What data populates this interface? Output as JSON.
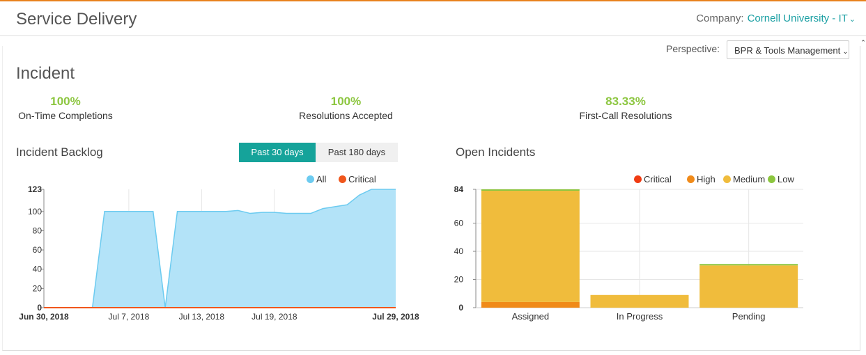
{
  "header": {
    "title": "Service Delivery",
    "company_label": "Company:",
    "company_value": "Cornell University - IT",
    "accent": "#e8821e"
  },
  "perspective": {
    "label": "Perspective:",
    "value": "BPR & Tools Management"
  },
  "section": {
    "title": "Incident"
  },
  "kpis": [
    {
      "value": "100%",
      "label": "On-Time Completions"
    },
    {
      "value": "100%",
      "label": "Resolutions Accepted"
    },
    {
      "value": "83.33%",
      "label": "First-Call Resolutions"
    }
  ],
  "backlog": {
    "title": "Incident Backlog",
    "tabs": [
      {
        "label": "Past 30 days",
        "active": true
      },
      {
        "label": "Past 180 days",
        "active": false
      }
    ],
    "legend": [
      {
        "name": "All",
        "color": "#6ccbf0"
      },
      {
        "name": "Critical",
        "color": "#f0561c"
      }
    ]
  },
  "open": {
    "title": "Open Incidents",
    "legend": [
      {
        "name": "Critical",
        "color": "#f03b12"
      },
      {
        "name": "High",
        "color": "#f08a19"
      },
      {
        "name": "Medium",
        "color": "#f0bc3c"
      },
      {
        "name": "Low",
        "color": "#8cc63f"
      }
    ]
  },
  "chart_data": [
    {
      "type": "area",
      "title": "Incident Backlog",
      "x": [
        "2018-06-30",
        "2018-07-01",
        "2018-07-02",
        "2018-07-03",
        "2018-07-04",
        "2018-07-05",
        "2018-07-06",
        "2018-07-07",
        "2018-07-08",
        "2018-07-09",
        "2018-07-10",
        "2018-07-11",
        "2018-07-12",
        "2018-07-13",
        "2018-07-14",
        "2018-07-15",
        "2018-07-16",
        "2018-07-17",
        "2018-07-18",
        "2018-07-19",
        "2018-07-20",
        "2018-07-21",
        "2018-07-22",
        "2018-07-23",
        "2018-07-24",
        "2018-07-25",
        "2018-07-26",
        "2018-07-27",
        "2018-07-28",
        "2018-07-29"
      ],
      "x_tick_labels": [
        "Jun 30, 2018",
        "Jul 7, 2018",
        "Jul 13, 2018",
        "Jul 19, 2018",
        "Jul 29, 2018"
      ],
      "x_tick_dates": [
        "2018-06-30",
        "2018-07-07",
        "2018-07-13",
        "2018-07-19",
        "2018-07-29"
      ],
      "series": [
        {
          "name": "All",
          "values": [
            0,
            0,
            0,
            0,
            0,
            100,
            100,
            100,
            100,
            100,
            0,
            100,
            100,
            100,
            100,
            100,
            101,
            98,
            99,
            99,
            98,
            98,
            98,
            103,
            105,
            107,
            117,
            123,
            123,
            123
          ]
        },
        {
          "name": "Critical",
          "values": [
            0,
            0,
            0,
            0,
            0,
            0,
            0,
            0,
            0,
            0,
            0,
            0,
            0,
            0,
            0,
            0,
            0,
            0,
            0,
            0,
            0,
            0,
            0,
            0,
            0,
            0,
            0,
            0,
            0,
            0
          ]
        }
      ],
      "y_ticks": [
        "0",
        "20",
        "40",
        "60",
        "80",
        "100",
        "123"
      ],
      "ylim": [
        0,
        123
      ],
      "grid": "vertical",
      "legend_position": "top-right"
    },
    {
      "type": "bar",
      "stacked": true,
      "title": "Open Incidents",
      "categories": [
        "Assigned",
        "In Progress",
        "Pending"
      ],
      "series": [
        {
          "name": "Critical",
          "values": [
            0,
            0,
            0
          ]
        },
        {
          "name": "High",
          "values": [
            4,
            0,
            0
          ]
        },
        {
          "name": "Medium",
          "values": [
            79,
            9,
            30
          ]
        },
        {
          "name": "Low",
          "values": [
            1,
            0,
            1
          ]
        }
      ],
      "y_ticks": [
        "0",
        "20",
        "40",
        "60",
        "84"
      ],
      "ylim": [
        0,
        84
      ],
      "grid": "both",
      "legend_position": "top-right"
    }
  ]
}
